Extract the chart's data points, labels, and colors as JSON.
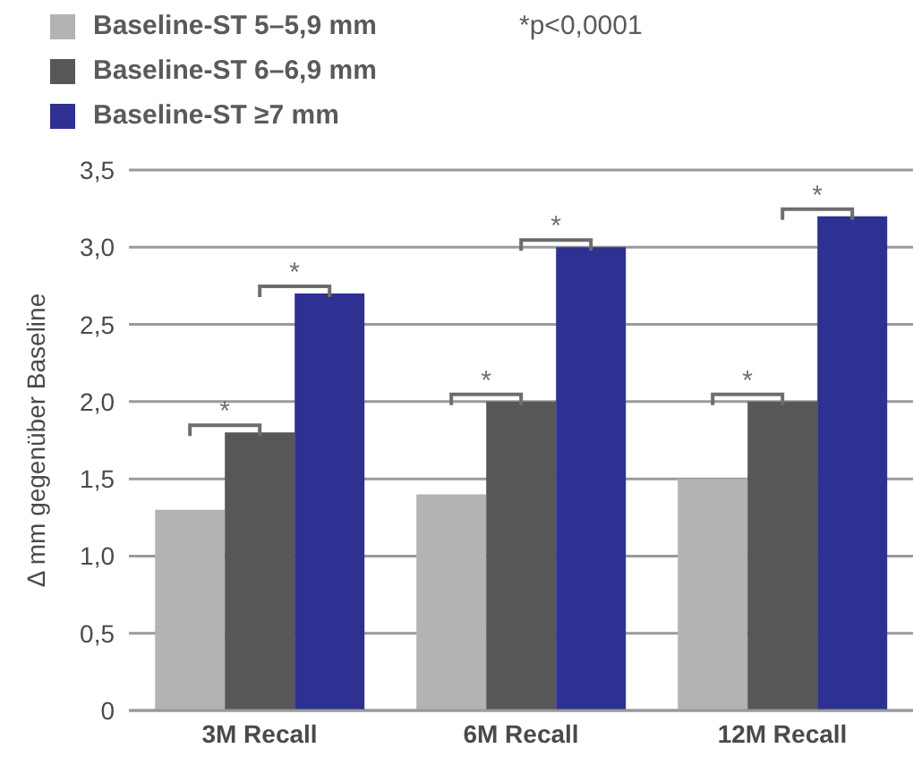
{
  "chart_data": {
    "type": "bar",
    "ylabel": "Δ mm gegenüber Baseline",
    "categories": [
      "3M Recall",
      "6M Recall",
      "12M Recall"
    ],
    "series": [
      {
        "name": "Baseline-ST 5–5,9 mm",
        "color": "#b3b3b3",
        "values": [
          1.3,
          1.4,
          1.5
        ]
      },
      {
        "name": "Baseline-ST 6–6,9 mm",
        "color": "#575757",
        "values": [
          1.8,
          2.0,
          2.0
        ]
      },
      {
        "name": "Baseline-ST ≥7 mm",
        "color": "#2e3192",
        "values": [
          2.7,
          3.0,
          3.2
        ]
      }
    ],
    "ylim": [
      0,
      3.5
    ],
    "yticks": [
      0,
      {
        "value": 0.5,
        "label": "0,5"
      },
      {
        "value": 1,
        "label": "1,0"
      },
      {
        "value": 1.5,
        "label": "1,5"
      },
      {
        "value": 2,
        "label": "2,0"
      },
      {
        "value": 2.5,
        "label": "2,5"
      },
      {
        "value": 3,
        "label": "3,0"
      },
      {
        "value": 3.5,
        "label": "3,5"
      }
    ],
    "grid": "y",
    "legend": "top left",
    "annotations": [
      "*p<0,0001",
      "*",
      "*",
      "*",
      "*",
      "*",
      "*"
    ]
  }
}
